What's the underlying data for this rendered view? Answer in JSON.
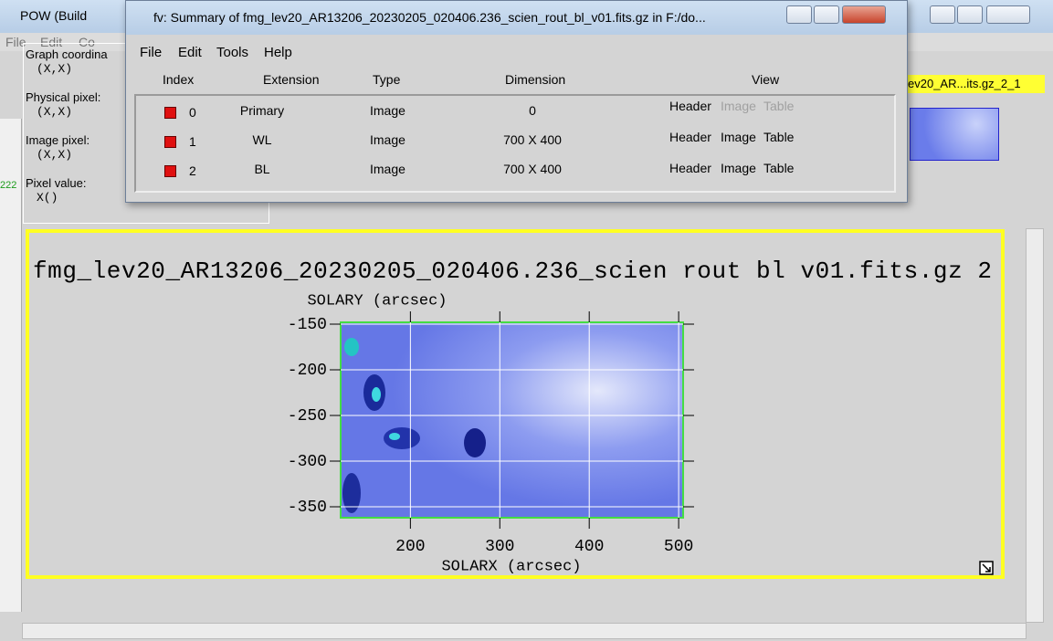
{
  "pow_window": {
    "title": "POW (Build",
    "menu": [
      "File",
      "Edit",
      "Co"
    ],
    "info_panel": [
      {
        "label": "Graph coordina",
        "value": "(X,X)"
      },
      {
        "label": "Physical pixel:",
        "value": "(X,X)"
      },
      {
        "label": "Image pixel:",
        "value": "(X,X)"
      },
      {
        "label": "Pixel value:",
        "value": "X()"
      }
    ],
    "thumbnail_label": "ev20_AR...its.gz_2_1",
    "plot": {
      "title": "fmg_lev20_AR13206_20230205_020406.236_scien rout bl v01.fits.gz 2",
      "ylabel": "SOLARY (arcsec)",
      "xlabel": "SOLARX (arcsec)",
      "xlim": [
        122,
        505
      ],
      "ylim": [
        -362,
        -148
      ],
      "xticks": [
        200,
        300,
        400,
        500
      ],
      "yticks": [
        -150,
        -200,
        -250,
        -300,
        -350
      ]
    }
  },
  "side_text": "222",
  "fv_window": {
    "title": "fv: Summary of fmg_lev20_AR13206_20230205_020406.236_scien_rout_bl_v01.fits.gz in F:/do...",
    "menu": [
      "File",
      "Edit",
      "Tools",
      "Help"
    ],
    "table": {
      "columns": [
        "Index",
        "Extension",
        "Type",
        "Dimension",
        "View"
      ],
      "rows": [
        [
          0,
          "Primary",
          "Image",
          "0"
        ],
        [
          1,
          "WL",
          "Image",
          "700 X 400"
        ],
        [
          2,
          "BL",
          "Image",
          "700 X 400"
        ]
      ],
      "buttons": [
        "Header",
        "Image",
        "Table"
      ]
    }
  }
}
